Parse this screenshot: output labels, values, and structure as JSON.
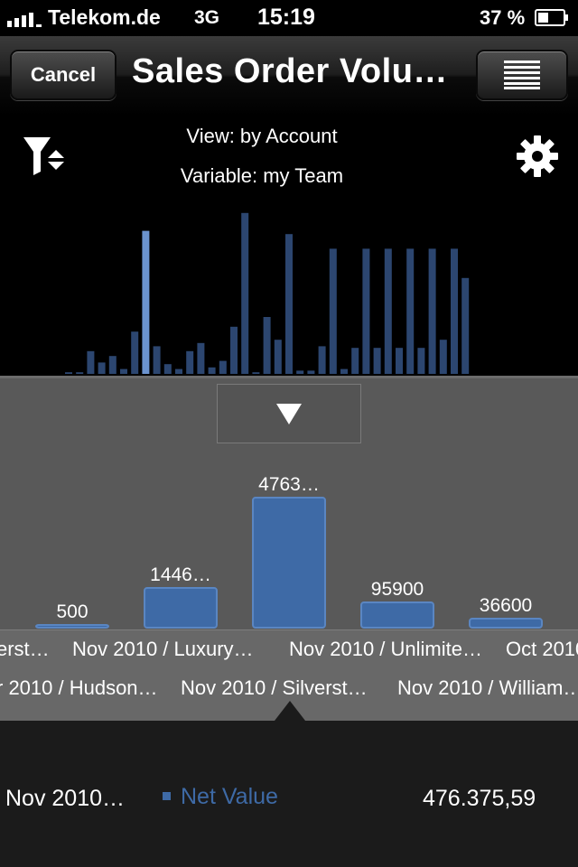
{
  "status_bar": {
    "carrier": "Telekom.de",
    "network": "3G",
    "time": "15:19",
    "battery_percent": "37 %"
  },
  "nav": {
    "cancel_label": "Cancel",
    "title": "Sales Order Volu…",
    "menu_icon": "list-icon"
  },
  "overview": {
    "view_text": "View: by Account",
    "variable_text": "Variable: my Team",
    "filter_icon": "filter-sort-icon",
    "settings_icon": "gear-icon",
    "selected_index": 7,
    "bar_levels": [
      0.01,
      0.01,
      0.14,
      0.07,
      0.11,
      0.03,
      0.26,
      0.88,
      0.17,
      0.06,
      0.03,
      0.14,
      0.19,
      0.04,
      0.08,
      0.29,
      0.99,
      0.01,
      0.35,
      0.21,
      0.86,
      0.02,
      0.02,
      0.17,
      0.77,
      0.03,
      0.16,
      0.77,
      0.16,
      0.77,
      0.16,
      0.77,
      0.16,
      0.77,
      0.21,
      0.77,
      0.59
    ]
  },
  "detail": {
    "collapse_icon": "triangle-down-icon",
    "bars": [
      {
        "label": "500",
        "level": 0.01
      },
      {
        "label": "1446…",
        "level": 0.22
      },
      {
        "label": "4763…",
        "level": 0.72
      },
      {
        "label": "95900",
        "level": 0.14
      },
      {
        "label": "36600",
        "level": 0.05
      }
    ],
    "labels_row1": [
      "erst…",
      "Nov 2010 / Luxury…",
      "Nov 2010 / Unlimite…",
      "Oct 2010"
    ],
    "labels_row2": [
      "r 2010 / Hudson…",
      "Nov 2010 / Silverst…",
      "Nov 2010 / William…"
    ]
  },
  "info": {
    "category": "Nov 2010…",
    "series": "Net Value",
    "value": "476.375,59"
  },
  "colors": {
    "bar": "#3e6aa6",
    "bar_dim": "#2c4670",
    "selected": "#6b93cf"
  }
}
